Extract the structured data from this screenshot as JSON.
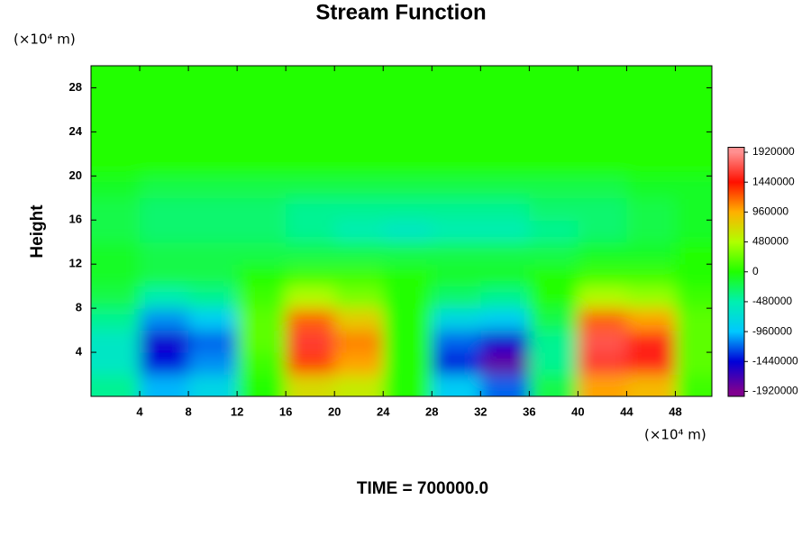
{
  "chart_data": {
    "type": "heatmap",
    "title": "Stream Function",
    "y_label": "Height",
    "y_unit": "(×10⁴ m)",
    "x_unit": "(×10⁴ m)",
    "footer": "TIME = 700000.0",
    "xlim": [
      0,
      51
    ],
    "ylim": [
      0,
      30
    ],
    "xticks": [
      4,
      8,
      12,
      16,
      20,
      24,
      28,
      32,
      36,
      40,
      44,
      48
    ],
    "yticks": [
      4,
      8,
      12,
      16,
      20,
      24,
      28
    ],
    "clim": [
      -2000000,
      2000000
    ],
    "cticks": [
      -1920000,
      -1440000,
      -960000,
      -480000,
      0,
      480000,
      960000,
      1440000,
      1920000
    ],
    "colorscale": [
      {
        "value": -1920000,
        "color": "#800090"
      },
      {
        "value": -1440000,
        "color": "#0000d8"
      },
      {
        "value": -960000,
        "color": "#00c8ff"
      },
      {
        "value": -480000,
        "color": "#00f0b0"
      },
      {
        "value": 0,
        "color": "#20ff00"
      },
      {
        "value": 480000,
        "color": "#b0ff00"
      },
      {
        "value": 960000,
        "color": "#ffb000"
      },
      {
        "value": 1440000,
        "color": "#ff1000"
      },
      {
        "value": 1920000,
        "color": "#ff9090"
      }
    ],
    "x": [
      2,
      6,
      10,
      14,
      18,
      22,
      26,
      30,
      34,
      38,
      42,
      46,
      50
    ],
    "y": [
      1,
      3,
      5,
      7,
      9,
      11,
      13,
      15,
      17,
      19,
      21,
      23,
      25,
      27,
      29
    ],
    "z": [
      [
        -400000,
        -1000000,
        -800000,
        0,
        700000,
        600000,
        0,
        -900000,
        -1200000,
        -200000,
        1000000,
        900000,
        100000
      ],
      [
        -600000,
        -1400000,
        -1100000,
        100000,
        1300000,
        1000000,
        0,
        -1400000,
        -1800000,
        -400000,
        1600000,
        1500000,
        200000
      ],
      [
        -600000,
        -1500000,
        -1200000,
        200000,
        1600000,
        1100000,
        0,
        -1200000,
        -1500000,
        -400000,
        1700000,
        1500000,
        200000
      ],
      [
        -400000,
        -1100000,
        -900000,
        200000,
        1200000,
        800000,
        0,
        -800000,
        -900000,
        -200000,
        1200000,
        1000000,
        200000
      ],
      [
        -200000,
        -500000,
        -400000,
        100000,
        500000,
        300000,
        0,
        -300000,
        -400000,
        0,
        500000,
        400000,
        100000
      ],
      [
        -100000,
        -200000,
        -200000,
        0,
        100000,
        100000,
        0,
        -100000,
        -100000,
        0,
        100000,
        100000,
        0
      ],
      [
        -100000,
        -200000,
        -200000,
        -200000,
        -200000,
        -200000,
        -200000,
        -200000,
        -200000,
        -200000,
        -100000,
        -100000,
        0
      ],
      [
        -200000,
        -300000,
        -300000,
        -300000,
        -400000,
        -500000,
        -600000,
        -500000,
        -500000,
        -400000,
        -300000,
        -200000,
        -100000
      ],
      [
        -200000,
        -300000,
        -300000,
        -300000,
        -400000,
        -400000,
        -400000,
        -400000,
        -400000,
        -300000,
        -300000,
        -200000,
        -100000
      ],
      [
        -100000,
        -200000,
        -200000,
        -200000,
        -200000,
        -200000,
        -200000,
        -200000,
        -200000,
        -200000,
        -200000,
        -100000,
        -100000
      ],
      [
        0,
        0,
        0,
        0,
        0,
        0,
        0,
        0,
        0,
        0,
        0,
        0,
        0
      ],
      [
        0,
        0,
        0,
        0,
        0,
        0,
        0,
        0,
        0,
        0,
        0,
        0,
        0
      ],
      [
        0,
        0,
        0,
        0,
        0,
        0,
        0,
        0,
        0,
        0,
        0,
        0,
        0
      ],
      [
        0,
        0,
        0,
        0,
        0,
        0,
        0,
        0,
        0,
        0,
        0,
        0,
        0
      ],
      [
        0,
        0,
        0,
        0,
        0,
        0,
        0,
        0,
        0,
        0,
        0,
        0,
        0
      ]
    ]
  }
}
